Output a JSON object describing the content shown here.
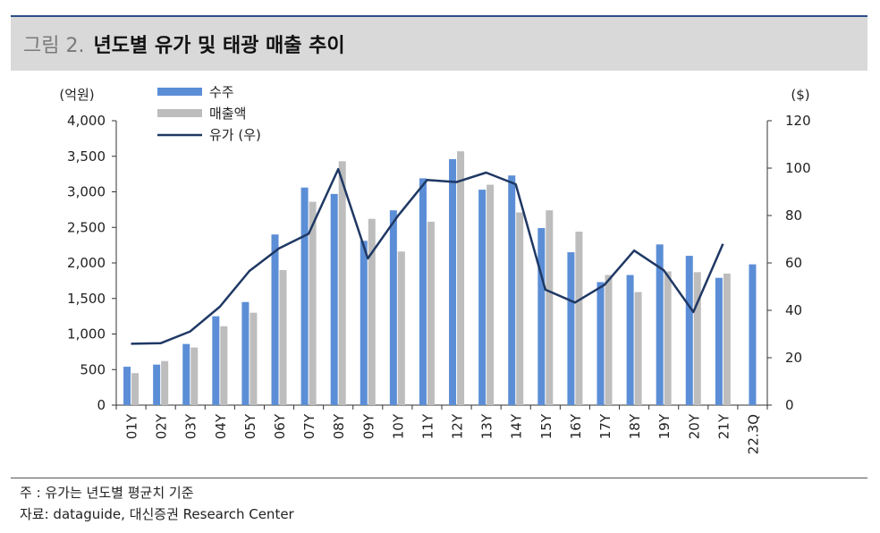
{
  "header": {
    "figure_number": "그림 2.",
    "title": "년도별 유가 및 태광 매출 추이"
  },
  "footer": {
    "note": "주 : 유가는 년도별 평균치 기준",
    "source": "자료:  dataguide, 대신증권 Research Center"
  },
  "colors": {
    "orders": "#5b8ed6",
    "sales": "#bdbdbd",
    "oil": "#1f3864",
    "rule": "#2a4f86",
    "title_bg": "#d9d9d9"
  },
  "chart_data": {
    "type": "bar",
    "categories": [
      "01Y",
      "02Y",
      "03Y",
      "04Y",
      "05Y",
      "06Y",
      "07Y",
      "08Y",
      "09Y",
      "10Y",
      "11Y",
      "12Y",
      "13Y",
      "14Y",
      "15Y",
      "16Y",
      "17Y",
      "18Y",
      "19Y",
      "20Y",
      "21Y",
      "22.3Q"
    ],
    "series": [
      {
        "name": "수주",
        "type": "bar",
        "axis": "left",
        "values": [
          540,
          570,
          860,
          1250,
          1450,
          2400,
          3060,
          2970,
          2310,
          2740,
          3190,
          3460,
          3030,
          3230,
          2490,
          2150,
          1730,
          1830,
          2260,
          2100,
          1790,
          1980
        ]
      },
      {
        "name": "매출액",
        "type": "bar",
        "axis": "left",
        "values": [
          450,
          620,
          810,
          1110,
          1300,
          1900,
          2860,
          3430,
          2620,
          2160,
          2580,
          3570,
          3100,
          2710,
          2740,
          2440,
          1830,
          1590,
          1880,
          1870,
          1850,
          null
        ]
      },
      {
        "name": "유가 (우)",
        "type": "line",
        "axis": "right",
        "values": [
          25.9,
          26.1,
          31.1,
          41.5,
          56.6,
          66.1,
          72.3,
          99.6,
          61.9,
          79.6,
          95.0,
          94.1,
          98.1,
          93.2,
          48.7,
          43.3,
          50.8,
          65.2,
          56.9,
          39.3,
          68.0,
          null
        ]
      }
    ],
    "y_left": {
      "unit_label": "(억원)",
      "range": [
        0,
        4000
      ],
      "ticks": [
        "0",
        "500",
        "1,000",
        "1,500",
        "2,000",
        "2,500",
        "3,000",
        "3,500",
        "4,000"
      ]
    },
    "y_right": {
      "unit_label": "($)",
      "range": [
        0,
        120
      ],
      "ticks": [
        "0",
        "20",
        "40",
        "60",
        "80",
        "100",
        "120"
      ]
    },
    "grid": false,
    "legend_position": "top-left"
  }
}
